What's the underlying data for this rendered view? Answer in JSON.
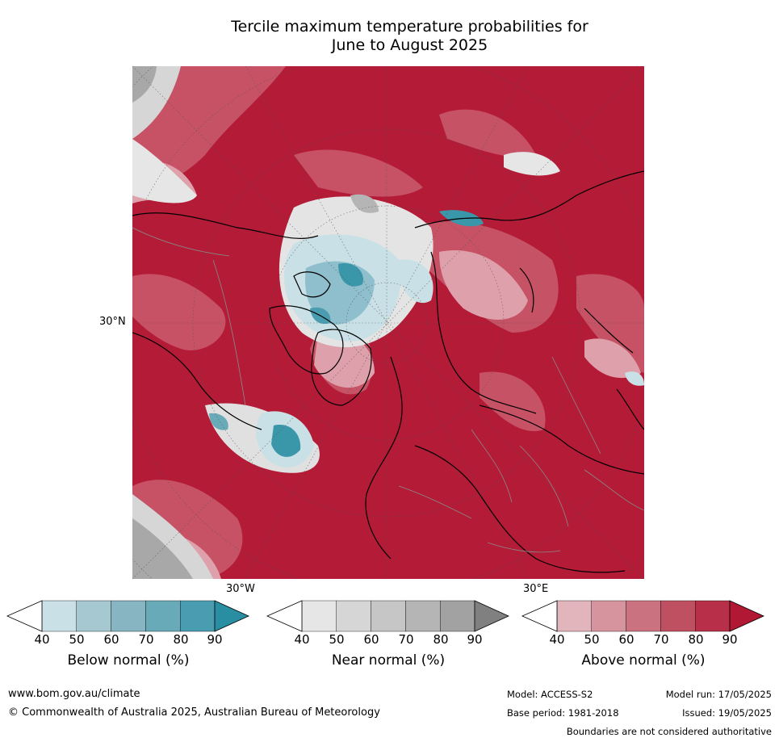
{
  "title_line1": "Tercile maximum temperature probabilities for",
  "title_line2": "June to August 2025",
  "map": {
    "lat_label": "30°N",
    "lon_label_left": "30°W",
    "lon_label_right": "30°E",
    "colors": {
      "dominant_above": "#b31b37",
      "mid_above": "#c9596b",
      "light_above": "#dea0ab",
      "near_normal": "#d6d6d6",
      "near_dark": "#a8a8a8",
      "below_light": "#c8e0e6",
      "below_mid": "#7fb6c4",
      "below_dark": "#3a97aa",
      "coastline": "#000000",
      "border": "#8a8a8a"
    }
  },
  "legend": {
    "ticks": [
      "40",
      "50",
      "60",
      "70",
      "80",
      "90"
    ],
    "below": {
      "label": "Below normal (%)",
      "colors": [
        "#c8e0e6",
        "#a6c9d1",
        "#88b5c2",
        "#69aab8",
        "#4a9db0",
        "#2a8ea3"
      ]
    },
    "near": {
      "label": "Near normal (%)",
      "colors": [
        "#e6e6e6",
        "#d6d6d6",
        "#c6c6c6",
        "#b5b5b5",
        "#a2a2a2",
        "#808080"
      ]
    },
    "above": {
      "label": "Above normal (%)",
      "colors": [
        "#e2b5bc",
        "#d6949f",
        "#ca7280",
        "#bf5062",
        "#b72f48",
        "#b01833"
      ]
    }
  },
  "footer": {
    "url": "www.bom.gov.au/climate",
    "copyright": "© Commonwealth of Australia 2025, Australian Bureau of Meteorology",
    "model": "Model: ACCESS-S2",
    "base_period": "Base period: 1981-2018",
    "model_run": "Model run: 17/05/2025",
    "issued": "Issued: 19/05/2025",
    "disclaimer": "Boundaries are not considered authoritative"
  }
}
